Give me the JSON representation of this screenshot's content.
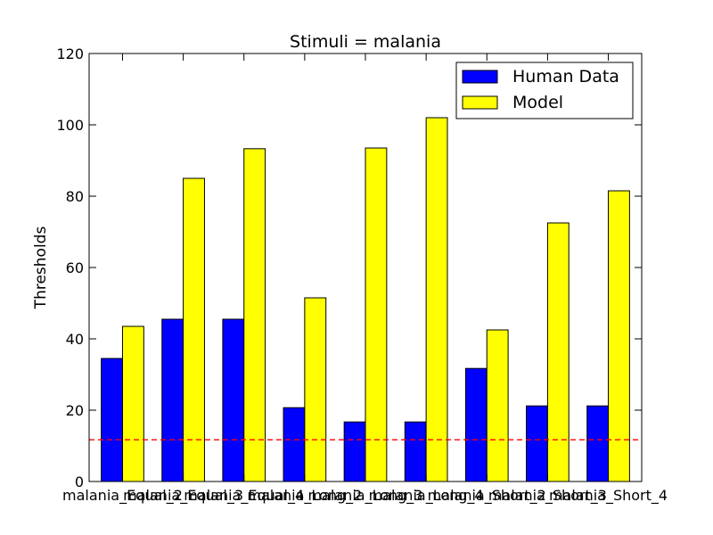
{
  "chart_data": {
    "type": "bar",
    "title": "Stimuli = malania",
    "xlabel": "",
    "ylabel": "Thresholds",
    "ylim": [
      0,
      120
    ],
    "yticks": [
      0,
      20,
      40,
      60,
      80,
      100,
      120
    ],
    "grid": false,
    "legend_position": "top-right",
    "categories": [
      "malania_Equal_2",
      "malania_Equal_3",
      "malania_Equal_4",
      "malania_Long_2",
      "malania_Long_3",
      "malania_Long_4",
      "malania_Short_2",
      "malania_Short_3",
      "malania_Short_4"
    ],
    "series": [
      {
        "name": "Human Data",
        "color": "#0000ff",
        "values": [
          34.5,
          45.5,
          45.5,
          20.7,
          16.7,
          16.7,
          31.7,
          21.2,
          21.2
        ]
      },
      {
        "name": "Model",
        "color": "#ffff00",
        "values": [
          43.5,
          85.0,
          93.3,
          51.5,
          93.5,
          102.0,
          42.5,
          72.5,
          81.5
        ]
      }
    ],
    "reference_line": {
      "y": 11.7,
      "color": "#ff0000",
      "style": "dashed"
    }
  }
}
